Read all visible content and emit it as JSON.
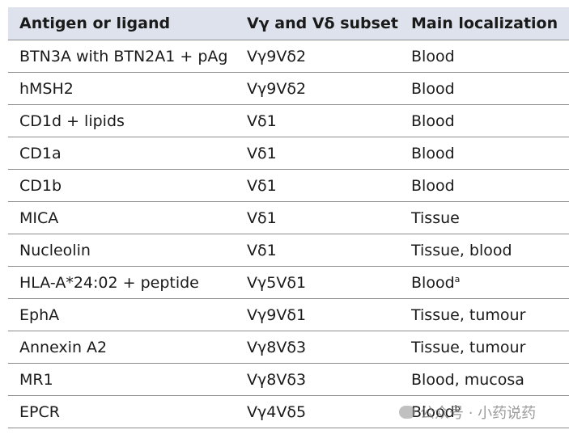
{
  "table": {
    "header": [
      "Antigen or ligand",
      "Vγ and Vδ subset",
      "Main localization"
    ],
    "rows": [
      [
        "BTN3A with BTN2A1 + pAg",
        "Vγ9Vδ2",
        "Blood"
      ],
      [
        "hMSH2",
        "Vγ9Vδ2",
        "Blood"
      ],
      [
        "CD1d + lipids",
        "Vδ1",
        "Blood"
      ],
      [
        "CD1a",
        "Vδ1",
        "Blood"
      ],
      [
        "CD1b",
        "Vδ1",
        "Blood"
      ],
      [
        "MICA",
        "Vδ1",
        "Tissue"
      ],
      [
        "Nucleolin",
        "Vδ1",
        "Tissue, blood"
      ],
      [
        "HLA-A*24:02 + peptide",
        "Vγ5Vδ1",
        {
          "text": "Blood",
          "sup": "a"
        }
      ],
      [
        "EphA",
        "Vγ9Vδ1",
        "Tissue, tumour"
      ],
      [
        "Annexin A2",
        "Vγ8Vδ3",
        "Tissue, tumour"
      ],
      [
        "MR1",
        "Vγ8Vδ3",
        "Blood, mucosa"
      ],
      [
        "EPCR",
        "Vγ4Vδ5",
        {
          "text": "Blood",
          "sup": "b"
        }
      ]
    ]
  },
  "watermark": "公众号 · 小药说药"
}
